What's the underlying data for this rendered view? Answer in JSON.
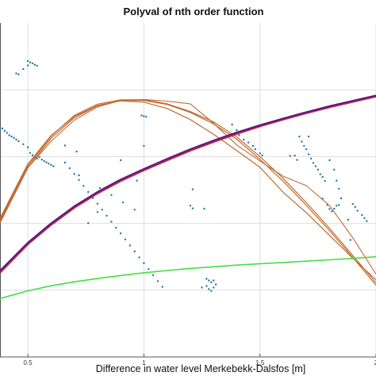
{
  "chart_data": {
    "type": "scatter",
    "title": "Polyval of nth order function",
    "xlabel": "Difference in water level Merkebekk-Dalsfos [m]",
    "ylabel": "",
    "xlim": [
      0.38,
      2.0
    ],
    "ylim": [
      0,
      1
    ],
    "x_ticks": [
      0.5,
      1,
      1.5,
      2
    ],
    "x_tick_labels": [
      "0.5",
      "1",
      "1.5",
      "2"
    ],
    "grid": true,
    "colors": {
      "points": "#1f77a0",
      "orange": "#c06a30",
      "purple": "#5a1a88",
      "red": "#c8283a",
      "green": "#44dd44",
      "grid": "#dddddd",
      "axis": "#555555"
    },
    "scatter_points": [
      [
        0.38,
        0.68
      ],
      [
        0.39,
        0.684
      ],
      [
        0.4,
        0.677
      ],
      [
        0.41,
        0.671
      ],
      [
        0.42,
        0.664
      ],
      [
        0.43,
        0.66
      ],
      [
        0.44,
        0.656
      ],
      [
        0.45,
        0.651
      ],
      [
        0.46,
        0.646
      ],
      [
        0.48,
        0.637
      ],
      [
        0.5,
        0.628
      ],
      [
        0.51,
        0.611
      ],
      [
        0.52,
        0.604
      ],
      [
        0.53,
        0.598
      ],
      [
        0.54,
        0.594
      ],
      [
        0.55,
        0.598
      ],
      [
        0.56,
        0.591
      ],
      [
        0.57,
        0.587
      ],
      [
        0.58,
        0.583
      ],
      [
        0.59,
        0.579
      ],
      [
        0.6,
        0.575
      ],
      [
        0.61,
        0.571
      ],
      [
        0.5,
        0.886
      ],
      [
        0.51,
        0.882
      ],
      [
        0.52,
        0.879
      ],
      [
        0.53,
        0.875
      ],
      [
        0.54,
        0.872
      ],
      [
        0.5,
        0.873
      ],
      [
        0.48,
        0.862
      ],
      [
        0.45,
        0.849
      ],
      [
        0.46,
        0.846
      ],
      [
        0.66,
        0.633
      ],
      [
        0.71,
        0.615
      ],
      [
        0.72,
        0.544
      ],
      [
        0.66,
        0.582
      ],
      [
        0.68,
        0.565
      ],
      [
        0.7,
        0.548
      ],
      [
        0.72,
        0.53
      ],
      [
        0.74,
        0.512
      ],
      [
        0.76,
        0.494
      ],
      [
        0.78,
        0.476
      ],
      [
        0.8,
        0.459
      ],
      [
        0.82,
        0.441
      ],
      [
        0.84,
        0.423
      ],
      [
        0.86,
        0.405
      ],
      [
        0.88,
        0.387
      ],
      [
        0.9,
        0.37
      ],
      [
        0.92,
        0.352
      ],
      [
        0.94,
        0.334
      ],
      [
        0.96,
        0.316
      ],
      [
        0.98,
        0.298
      ],
      [
        1.0,
        0.281
      ],
      [
        1.02,
        0.263
      ],
      [
        1.04,
        0.245
      ],
      [
        1.06,
        0.227
      ],
      [
        1.08,
        0.21
      ],
      [
        0.81,
        0.506
      ],
      [
        0.86,
        0.485
      ],
      [
        0.91,
        0.463
      ],
      [
        0.96,
        0.441
      ],
      [
        0.9,
        0.589
      ],
      [
        0.97,
        0.528
      ],
      [
        0.8,
        0.434
      ],
      [
        0.76,
        0.401
      ],
      [
        0.99,
        0.723
      ],
      [
        1.0,
        0.721
      ],
      [
        1.01,
        0.719
      ],
      [
        1.0,
        0.632
      ],
      [
        1.2,
        0.453
      ],
      [
        1.21,
        0.445
      ],
      [
        1.26,
        0.444
      ],
      [
        1.21,
        0.502
      ],
      [
        1.27,
        0.234
      ],
      [
        1.28,
        0.229
      ],
      [
        1.29,
        0.224
      ],
      [
        1.3,
        0.229
      ],
      [
        1.25,
        0.208
      ],
      [
        1.3,
        0.208
      ],
      [
        1.28,
        0.203
      ],
      [
        1.29,
        0.198
      ],
      [
        1.27,
        0.212
      ],
      [
        1.31,
        0.217
      ],
      [
        1.38,
        0.696
      ],
      [
        1.4,
        0.679
      ],
      [
        1.41,
        0.664
      ],
      [
        1.43,
        0.651
      ],
      [
        1.45,
        0.642
      ],
      [
        1.47,
        0.632
      ],
      [
        1.48,
        0.622
      ],
      [
        1.5,
        0.61
      ],
      [
        1.51,
        0.604
      ],
      [
        1.67,
        0.66
      ],
      [
        1.68,
        0.645
      ],
      [
        1.69,
        0.632
      ],
      [
        1.7,
        0.622
      ],
      [
        1.71,
        0.607
      ],
      [
        1.72,
        0.594
      ],
      [
        1.73,
        0.581
      ],
      [
        1.74,
        0.571
      ],
      [
        1.75,
        0.561
      ],
      [
        1.76,
        0.547
      ],
      [
        1.77,
        0.539
      ],
      [
        1.78,
        0.527
      ],
      [
        1.8,
        0.589
      ],
      [
        1.82,
        0.561
      ],
      [
        1.83,
        0.528
      ],
      [
        1.84,
        0.504
      ],
      [
        1.85,
        0.475
      ],
      [
        1.82,
        0.444
      ],
      [
        1.83,
        0.453
      ],
      [
        1.84,
        0.455
      ],
      [
        1.9,
        0.458
      ],
      [
        1.91,
        0.449
      ],
      [
        1.92,
        0.438
      ],
      [
        1.94,
        0.425
      ],
      [
        1.95,
        0.416
      ],
      [
        1.96,
        0.407
      ],
      [
        1.77,
        0.474
      ],
      [
        1.79,
        0.455
      ],
      [
        1.8,
        0.443
      ],
      [
        1.81,
        0.436
      ],
      [
        1.63,
        0.602
      ],
      [
        1.65,
        0.603
      ],
      [
        1.66,
        0.59
      ],
      [
        1.71,
        0.66
      ],
      [
        1.89,
        0.35
      ],
      [
        1.88,
        0.411
      ]
    ],
    "series": [
      {
        "x": [
          0.38,
          0.5,
          0.6,
          0.7,
          0.8,
          0.9,
          1.0,
          1.1,
          1.2,
          1.3,
          1.4,
          1.5,
          1.6,
          1.7,
          1.8,
          1.9,
          2.0
        ],
        "y": [
          0.415,
          0.578,
          0.663,
          0.72,
          0.753,
          0.767,
          0.763,
          0.744,
          0.711,
          0.667,
          0.618,
          0.568,
          0.493,
          0.432,
          0.364,
          0.296,
          0.231
        ]
      },
      {
        "x": [
          0.38,
          0.5,
          0.6,
          0.7,
          0.8,
          0.9,
          1.0,
          1.1,
          1.2,
          1.3,
          1.4,
          1.5,
          1.6,
          1.7,
          1.8,
          1.9,
          2.0
        ],
        "y": [
          0.41,
          0.572,
          0.661,
          0.723,
          0.757,
          0.77,
          0.77,
          0.758,
          0.735,
          0.704,
          0.659,
          0.6,
          0.535,
          0.462,
          0.385,
          0.304,
          0.222
        ]
      },
      {
        "x": [
          0.38,
          0.5,
          0.6,
          0.7,
          0.8,
          0.9,
          1.0,
          1.1,
          1.2,
          1.3,
          1.4,
          1.5,
          1.6,
          1.7,
          1.8,
          1.9,
          2.0
        ],
        "y": [
          0.405,
          0.566,
          0.655,
          0.716,
          0.752,
          0.768,
          0.768,
          0.756,
          0.732,
          0.698,
          0.652,
          0.592,
          0.526,
          0.454,
          0.378,
          0.298,
          0.215
        ]
      },
      {
        "x": [
          0.38,
          0.5,
          0.6,
          0.7,
          0.8,
          0.9,
          1.0,
          1.1,
          1.2,
          1.3,
          1.4,
          1.5,
          1.6,
          1.7,
          1.8,
          1.9,
          2.0
        ],
        "y": [
          0.401,
          0.566,
          0.646,
          0.709,
          0.749,
          0.768,
          0.771,
          0.766,
          0.758,
          0.7,
          0.635,
          0.587,
          0.541,
          0.513,
          0.453,
          0.357,
          0.248
        ]
      },
      {
        "x": [
          0.38,
          0.5,
          0.6,
          0.7,
          0.8,
          0.9,
          1.0,
          1.1,
          1.2,
          1.3,
          1.4,
          1.5,
          1.6,
          1.7,
          1.8,
          1.9,
          2.0
        ],
        "y": [
          0.254,
          0.339,
          0.397,
          0.448,
          0.491,
          0.528,
          0.56,
          0.59,
          0.619,
          0.645,
          0.669,
          0.692,
          0.712,
          0.731,
          0.749,
          0.765,
          0.781
        ]
      },
      {
        "x": [
          0.38,
          0.5,
          0.6,
          0.7,
          0.8,
          0.9,
          1.0,
          1.1,
          1.2,
          1.3,
          1.4,
          1.5,
          1.6,
          1.7,
          1.8,
          1.9,
          2.0
        ],
        "y": [
          0.258,
          0.342,
          0.4,
          0.451,
          0.494,
          0.531,
          0.563,
          0.593,
          0.622,
          0.648,
          0.672,
          0.694,
          0.714,
          0.733,
          0.751,
          0.767,
          0.783
        ]
      },
      {
        "x": [
          0.38,
          0.5,
          0.6,
          0.7,
          0.8,
          0.9,
          1.0,
          1.1,
          1.2,
          1.3,
          1.4,
          1.5,
          1.6,
          1.7,
          1.8,
          1.9,
          2.0
        ],
        "y": [
          0.175,
          0.198,
          0.213,
          0.225,
          0.235,
          0.244,
          0.252,
          0.259,
          0.265,
          0.27,
          0.275,
          0.279,
          0.283,
          0.287,
          0.291,
          0.295,
          0.3
        ]
      }
    ]
  }
}
